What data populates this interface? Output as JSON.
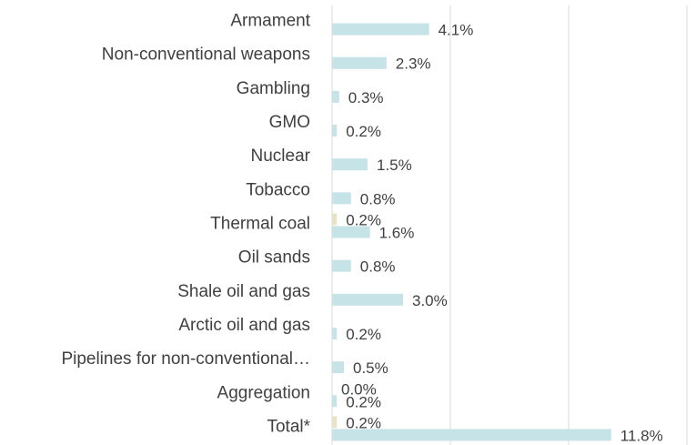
{
  "chart_data": {
    "type": "barh",
    "categories": [
      "Armament",
      "Non-conventional weapons",
      "Gambling",
      "GMO",
      "Nuclear",
      "Tobacco",
      "Thermal coal",
      "Oil sands",
      "Shale oil and gas",
      "Arctic oil and gas",
      "Pipelines for non-conventional…",
      "Aggregation",
      "Total*"
    ],
    "series": [
      {
        "color": "#e8e3c4",
        "values": [
          null,
          null,
          null,
          null,
          null,
          null,
          0.2,
          null,
          null,
          null,
          null,
          0.0,
          0.2
        ],
        "value_labels": [
          null,
          null,
          null,
          null,
          null,
          null,
          "0.2%",
          null,
          null,
          null,
          null,
          "0.0%",
          "0.2%"
        ]
      },
      {
        "color": "#c6e3e8",
        "values": [
          4.1,
          2.3,
          0.3,
          0.2,
          1.5,
          0.8,
          1.6,
          0.8,
          3.0,
          0.2,
          0.5,
          0.2,
          11.8
        ],
        "value_labels": [
          "4.1%",
          "2.3%",
          "0.3%",
          "0.2%",
          "1.5%",
          "0.8%",
          "1.6%",
          "0.8%",
          "3.0%",
          "0.2%",
          "0.5%",
          "0.2%",
          "11.8%"
        ]
      }
    ],
    "xlim": [
      0,
      15
    ],
    "xticks": [
      0,
      5,
      10,
      15
    ],
    "grid": true
  }
}
